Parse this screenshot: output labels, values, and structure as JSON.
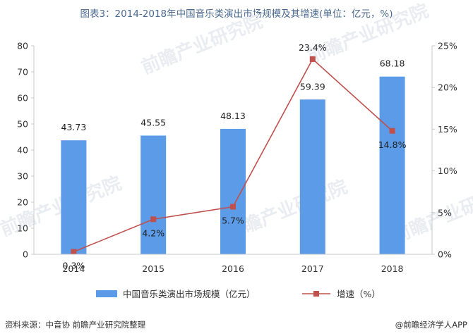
{
  "title": "图表3：2014-2018年中国音乐类演出市场规模及其增速(单位：亿元，%)",
  "source": "资料来源：中音协 前瞻产业研究院整理",
  "credit": "@前瞻经济学人APP",
  "watermark": "前瞻产业研究院",
  "colors": {
    "bar": "#5b9be8",
    "line": "#c0504d",
    "axis": "#c8c8c8"
  },
  "chart_data": {
    "type": "bar",
    "categories": [
      "2014",
      "2015",
      "2016",
      "2017",
      "2018"
    ],
    "series": [
      {
        "name": "中国音乐类演出市场规模（亿元）",
        "type": "bar",
        "axis": "left",
        "values": [
          43.73,
          45.55,
          48.13,
          59.39,
          68.18
        ],
        "labels": [
          "43.73",
          "45.55",
          "48.13",
          "59.39",
          "68.18"
        ]
      },
      {
        "name": "增速（%）",
        "type": "line",
        "axis": "right",
        "values": [
          0.3,
          4.2,
          5.7,
          23.4,
          14.8
        ],
        "labels": [
          "0.3%",
          "4.2%",
          "5.7%",
          "23.4%",
          "14.8%"
        ]
      }
    ],
    "ylim": [
      0,
      80
    ],
    "yticks": [
      "0",
      "10",
      "20",
      "30",
      "40",
      "50",
      "60",
      "70",
      "80"
    ],
    "y2lim": [
      0,
      25
    ],
    "y2ticks": [
      "0%",
      "5%",
      "10%",
      "15%",
      "20%",
      "25%"
    ],
    "legend_position": "bottom"
  }
}
